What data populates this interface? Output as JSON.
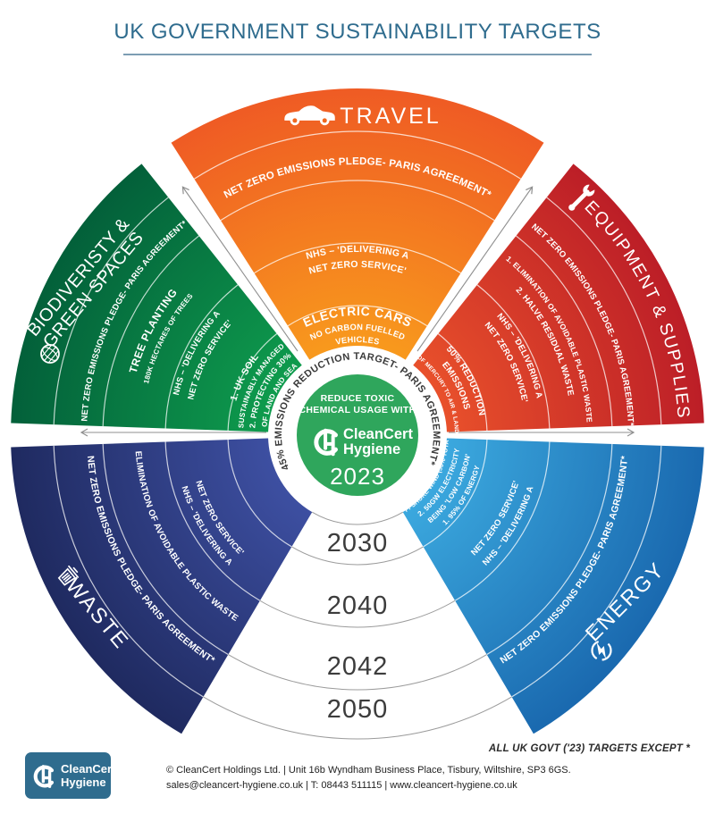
{
  "page": {
    "title": "UK GOVERNMENT SUSTAINABILITY TARGETS"
  },
  "center": {
    "tagline": [
      "REDUCE TOXIC",
      "CHEMICAL USAGE WITH"
    ],
    "brand": [
      "CleanCert",
      "Hygiene"
    ],
    "year": "2023"
  },
  "ring_note": "45% EMISSIONS REDUCTION TARGET- PARIS AGREEMENT*",
  "year_rings": [
    "2030",
    "2040",
    "2042",
    "2050"
  ],
  "sectors": {
    "travel": {
      "label": "TRAVEL",
      "icon": "car-icon",
      "color_inner": "#F8991D",
      "color_outer": "#EF5B24",
      "rings": {
        "y2050": [
          "NET ZERO EMISSIONS PLEDGE- PARIS AGREEMENT*"
        ],
        "y2040": [
          "NHS – 'DELIVERING A",
          "NET ZERO SERVICE'"
        ],
        "y2030": [
          "ELECTRIC CARS",
          "NO CARBON FUELLED",
          "VEHICLES"
        ]
      }
    },
    "equipment": {
      "label": "EQUIPMENT & SUPPLIES",
      "icon": "wrench-icon",
      "color_inner": "#E8502B",
      "color_outer": "#BC1E27",
      "rings": {
        "y2050": [
          "NET ZERO EMISSIONS PLEDGE- PARIS AGREEMENT*"
        ],
        "y2042": [
          "1. ELIMINATION OF AVOIDABLE PLASTIC WASTE",
          "2. HALVE RESIDUAL WASTE"
        ],
        "y2040": [
          "NHS – 'DELIVERING A",
          "NET ZERO SERVICE'"
        ],
        "y2030": [
          "50% REDUCTION",
          "EMISSIONS",
          "OF MERCURY TO AIR & LAND"
        ]
      }
    },
    "energy": {
      "label": "ENERGY",
      "icon": "lightning-bolt-icon",
      "color_inner": "#3BA8DE",
      "color_outer": "#1A69AF",
      "rings": {
        "y2050": [
          "NET ZERO EMISSIONS PLEDGE- PARIS AGREEMENT*"
        ],
        "y2040": [
          "NHS – 'DELIVERING A",
          "NET ZERO SERVICE'"
        ],
        "y2030": [
          "1. 95% OF ENERGY",
          "BEING 'LOW CARBON'",
          "2. 50GW ELECTRICITY",
          "OFFSHORE WIND (50% TOTAL)"
        ]
      }
    },
    "waste": {
      "label": "WASTE",
      "icon": "trash-can-icon",
      "color_inner": "#3D4FA1",
      "color_outer": "#1F2A60",
      "rings": {
        "y2050": [
          "NET ZERO EMISSIONS PLEDGE- PARIS AGREEMENT*"
        ],
        "y2042": [
          "ELIMINATION OF AVOIDABLE PLASTIC WASTE"
        ],
        "y2040": [
          "NHS – 'DELIVERING A",
          "NET ZERO SERVICE'"
        ]
      }
    },
    "biodiversity": {
      "label": [
        "BIODIVERISTY &",
        "GREEN SPACES"
      ],
      "icon": "globe-icon",
      "color_inner": "#0E9B4D",
      "color_outer": "#03603A",
      "rings": {
        "y2050": [
          "NET ZERO EMISSIONS PLEDGE- PARIS AGREEMENT*"
        ],
        "y2042": [
          "TREE PLANTING",
          "180K HECTARES OF TREES"
        ],
        "y2040": [
          "NHS – 'DELIVERING A",
          "NET ZERO SERVICE'"
        ],
        "y2030": [
          "1. UK SOIL",
          "SUSTAINABLY MANAGED",
          "2. PROTECTING 30%",
          "OF LAND AND SEA"
        ]
      }
    }
  },
  "footnote": "ALL UK GOVT ('23) TARGETS EXCEPT *",
  "footer": {
    "brand": [
      "CleanCert",
      "Hygiene"
    ],
    "line1": "© CleanCert Holdings Ltd. | Unit 16b Wyndham Business Place, Tisbury, Wiltshire, SP3 6GS.",
    "line2": "sales@cleancert-hygiene.co.uk | T: 08443 511115 | www.cleancert-hygiene.co.uk"
  },
  "colors": {
    "title": "#2F6C8E",
    "center_circle": "#2FA65C",
    "year_text": "#3C3C3C",
    "logo_box": "#2F6C8E"
  }
}
